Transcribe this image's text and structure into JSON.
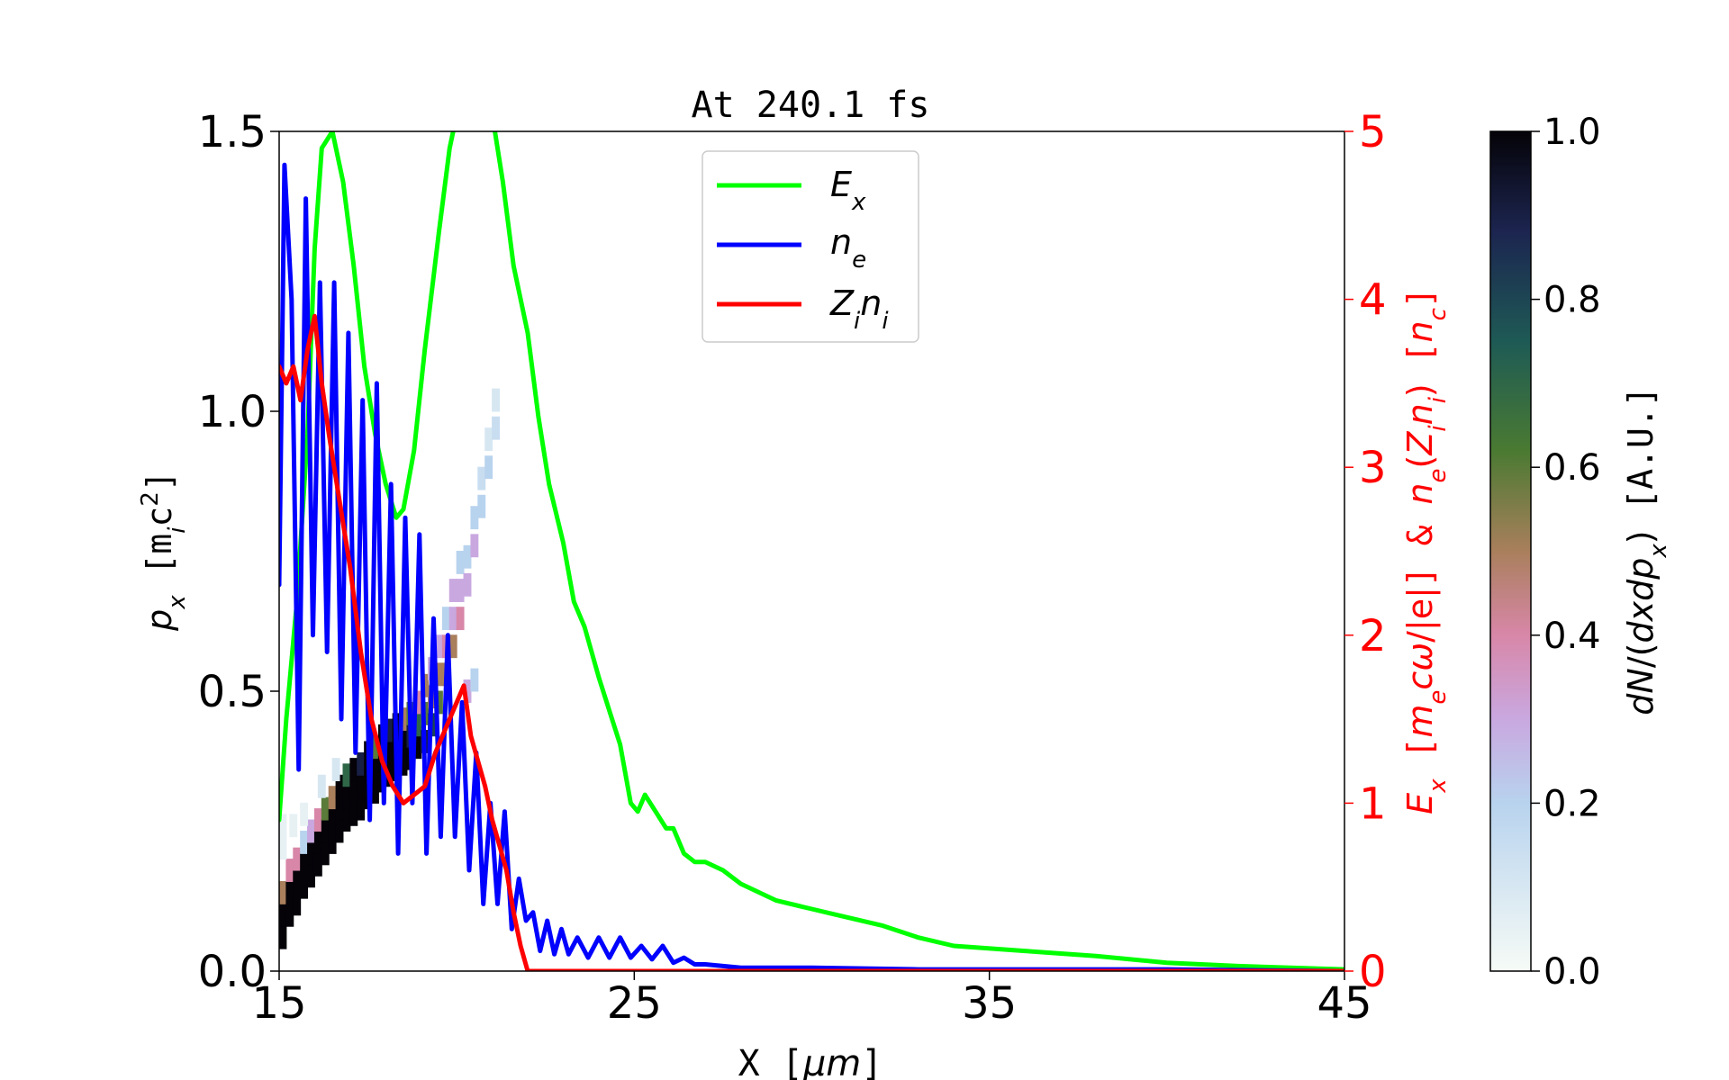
{
  "chart_data": {
    "type": "line",
    "title": "At 240.1 fs",
    "xlabel": "X [μm]",
    "ylabel_left": "p_x [m_i c^2]",
    "ylabel_right": "E_x [m_e cω/|e|] & n_e(Z_i n_i) [n_c]",
    "colorbar_label": "dN/(dx dp_x) [A.U.]",
    "xlim": [
      15,
      45
    ],
    "ylim_left": [
      0,
      1.5
    ],
    "ylim_right": [
      0,
      5
    ],
    "xticks": [
      "15",
      "25",
      "35",
      "45"
    ],
    "yticks_left": [
      "0.0",
      "0.5",
      "1.0",
      "1.5"
    ],
    "yticks_right": [
      "0",
      "1",
      "2",
      "3",
      "4",
      "5"
    ],
    "colorbar_ticks": [
      "0.0",
      "0.2",
      "0.4",
      "0.6",
      "0.8",
      "1.0"
    ],
    "colorbar_range": [
      0,
      1
    ],
    "legend": {
      "placement": "upper-center",
      "entries": [
        "E_x",
        "n_e",
        "Z_i n_i"
      ]
    },
    "colors": {
      "Ex": "#00ff00",
      "ne": "#0000ff",
      "Zn": "#ff0000",
      "right_axis": "#ff0000"
    },
    "series": [
      {
        "name": "E_x",
        "axis": "right",
        "x": [
          15.0,
          15.2,
          15.5,
          15.8,
          16.0,
          16.2,
          16.5,
          16.8,
          17.1,
          17.4,
          17.7,
          18.0,
          18.3,
          18.5,
          18.8,
          19.1,
          19.5,
          19.8,
          20.0,
          20.3,
          20.6,
          21.0,
          21.3,
          21.6,
          22.0,
          22.3,
          22.6,
          23.0,
          23.3,
          23.6,
          24.0,
          24.3,
          24.6,
          24.9,
          25.1,
          25.3,
          25.6,
          25.9,
          26.1,
          26.4,
          26.7,
          27.0,
          27.5,
          28.0,
          29.0,
          30.0,
          31.0,
          32.0,
          33.0,
          34.0,
          36.0,
          38.0,
          40.0,
          42.0,
          45.0
        ],
        "y": [
          0.9,
          1.5,
          2.2,
          3.2,
          4.3,
          4.9,
          5.0,
          4.7,
          4.2,
          3.6,
          3.2,
          2.9,
          2.7,
          2.75,
          3.1,
          3.7,
          4.4,
          4.9,
          5.1,
          5.5,
          5.6,
          5.1,
          4.7,
          4.2,
          3.8,
          3.3,
          2.9,
          2.55,
          2.2,
          2.05,
          1.75,
          1.55,
          1.35,
          1.0,
          0.95,
          1.05,
          0.95,
          0.85,
          0.85,
          0.7,
          0.65,
          0.65,
          0.6,
          0.52,
          0.42,
          0.37,
          0.32,
          0.27,
          0.2,
          0.15,
          0.12,
          0.09,
          0.05,
          0.03,
          0.01
        ]
      },
      {
        "name": "n_e",
        "axis": "right",
        "x": [
          15.0,
          15.15,
          15.35,
          15.55,
          15.75,
          15.95,
          16.15,
          16.35,
          16.55,
          16.75,
          16.95,
          17.15,
          17.35,
          17.55,
          17.75,
          17.95,
          18.15,
          18.35,
          18.55,
          18.75,
          18.95,
          19.15,
          19.35,
          19.55,
          19.75,
          19.95,
          20.15,
          20.35,
          20.55,
          20.75,
          20.95,
          21.15,
          21.35,
          21.55,
          21.75,
          21.95,
          22.15,
          22.35,
          22.55,
          22.75,
          22.95,
          23.15,
          23.4,
          23.7,
          24.0,
          24.3,
          24.6,
          24.9,
          25.2,
          25.5,
          25.8,
          26.1,
          26.4,
          26.7,
          27.0,
          27.5,
          28.0,
          30.0,
          33.0,
          36.0,
          40.0,
          45.0
        ],
        "y": [
          2.3,
          4.8,
          4.0,
          1.2,
          4.6,
          2.0,
          4.1,
          1.9,
          4.1,
          1.5,
          3.8,
          1.3,
          3.4,
          0.9,
          3.5,
          1.0,
          2.9,
          0.7,
          2.7,
          1.0,
          2.6,
          0.7,
          2.1,
          0.8,
          2.0,
          0.8,
          1.6,
          0.6,
          1.3,
          0.4,
          1.0,
          0.4,
          0.95,
          0.25,
          0.55,
          0.3,
          0.35,
          0.12,
          0.3,
          0.1,
          0.25,
          0.1,
          0.2,
          0.08,
          0.2,
          0.08,
          0.2,
          0.08,
          0.15,
          0.07,
          0.15,
          0.05,
          0.08,
          0.04,
          0.04,
          0.03,
          0.02,
          0.02,
          0.01,
          0.01,
          0.01,
          0.0
        ]
      },
      {
        "name": "Z_i n_i",
        "axis": "right",
        "x": [
          15.0,
          15.2,
          15.4,
          15.6,
          15.8,
          16.0,
          16.2,
          16.4,
          16.7,
          17.0,
          17.3,
          17.6,
          17.9,
          18.2,
          18.5,
          18.8,
          19.1,
          19.4,
          19.7,
          20.0,
          20.2,
          20.4,
          20.6,
          20.8,
          21.0,
          21.2,
          21.4,
          21.6,
          21.8,
          22.0,
          22.2,
          25.0,
          30.0,
          35.0,
          40.0,
          45.0
        ],
        "y": [
          3.6,
          3.5,
          3.6,
          3.4,
          3.7,
          3.9,
          3.5,
          3.2,
          2.8,
          2.4,
          1.9,
          1.5,
          1.25,
          1.1,
          1.0,
          1.05,
          1.1,
          1.3,
          1.45,
          1.6,
          1.7,
          1.4,
          1.25,
          1.1,
          0.9,
          0.75,
          0.6,
          0.35,
          0.15,
          0.0,
          0.0,
          0.0,
          0.0,
          0.0,
          0.0,
          0.0
        ]
      }
    ],
    "phase_space": {
      "name": "dN/(dx dp_x)",
      "axis": "left",
      "points": [
        {
          "x": 15.1,
          "p": 0.06,
          "v": 1.0
        },
        {
          "x": 15.1,
          "p": 0.1,
          "v": 1.0
        },
        {
          "x": 15.1,
          "p": 0.14,
          "v": 0.5
        },
        {
          "x": 15.3,
          "p": 0.1,
          "v": 1.0
        },
        {
          "x": 15.3,
          "p": 0.14,
          "v": 1.0
        },
        {
          "x": 15.3,
          "p": 0.18,
          "v": 0.4
        },
        {
          "x": 15.5,
          "p": 0.12,
          "v": 1.0
        },
        {
          "x": 15.5,
          "p": 0.16,
          "v": 1.0
        },
        {
          "x": 15.5,
          "p": 0.2,
          "v": 0.4
        },
        {
          "x": 15.7,
          "p": 0.15,
          "v": 1.0
        },
        {
          "x": 15.7,
          "p": 0.19,
          "v": 1.0
        },
        {
          "x": 15.7,
          "p": 0.23,
          "v": 0.2
        },
        {
          "x": 15.9,
          "p": 0.17,
          "v": 1.0
        },
        {
          "x": 15.9,
          "p": 0.21,
          "v": 1.0
        },
        {
          "x": 15.9,
          "p": 0.25,
          "v": 0.3
        },
        {
          "x": 16.1,
          "p": 0.19,
          "v": 1.0
        },
        {
          "x": 16.1,
          "p": 0.23,
          "v": 1.0
        },
        {
          "x": 16.1,
          "p": 0.27,
          "v": 0.4
        },
        {
          "x": 16.3,
          "p": 0.21,
          "v": 1.0
        },
        {
          "x": 16.3,
          "p": 0.25,
          "v": 1.0
        },
        {
          "x": 16.3,
          "p": 0.29,
          "v": 0.6
        },
        {
          "x": 16.5,
          "p": 0.23,
          "v": 1.0
        },
        {
          "x": 16.5,
          "p": 0.27,
          "v": 1.0
        },
        {
          "x": 16.5,
          "p": 0.31,
          "v": 0.5
        },
        {
          "x": 16.7,
          "p": 0.25,
          "v": 1.0
        },
        {
          "x": 16.7,
          "p": 0.29,
          "v": 1.0
        },
        {
          "x": 16.7,
          "p": 0.33,
          "v": 1.0
        },
        {
          "x": 16.9,
          "p": 0.27,
          "v": 1.0
        },
        {
          "x": 16.9,
          "p": 0.31,
          "v": 1.0
        },
        {
          "x": 16.9,
          "p": 0.35,
          "v": 0.7
        },
        {
          "x": 17.1,
          "p": 0.28,
          "v": 1.0
        },
        {
          "x": 17.1,
          "p": 0.32,
          "v": 1.0
        },
        {
          "x": 17.1,
          "p": 0.36,
          "v": 1.0
        },
        {
          "x": 17.3,
          "p": 0.29,
          "v": 1.0
        },
        {
          "x": 17.3,
          "p": 0.33,
          "v": 1.0
        },
        {
          "x": 17.3,
          "p": 0.37,
          "v": 0.9
        },
        {
          "x": 17.5,
          "p": 0.31,
          "v": 1.0
        },
        {
          "x": 17.5,
          "p": 0.35,
          "v": 1.0
        },
        {
          "x": 17.5,
          "p": 0.39,
          "v": 1.0
        },
        {
          "x": 17.7,
          "p": 0.32,
          "v": 1.0
        },
        {
          "x": 17.7,
          "p": 0.36,
          "v": 1.0
        },
        {
          "x": 17.7,
          "p": 0.4,
          "v": 0.6
        },
        {
          "x": 17.9,
          "p": 0.34,
          "v": 1.0
        },
        {
          "x": 17.9,
          "p": 0.38,
          "v": 1.0
        },
        {
          "x": 17.9,
          "p": 0.42,
          "v": 1.0
        },
        {
          "x": 18.1,
          "p": 0.35,
          "v": 1.0
        },
        {
          "x": 18.1,
          "p": 0.39,
          "v": 1.0
        },
        {
          "x": 18.1,
          "p": 0.43,
          "v": 0.9
        },
        {
          "x": 18.3,
          "p": 0.36,
          "v": 1.0
        },
        {
          "x": 18.3,
          "p": 0.4,
          "v": 1.0
        },
        {
          "x": 18.3,
          "p": 0.44,
          "v": 1.0
        },
        {
          "x": 18.5,
          "p": 0.37,
          "v": 1.0
        },
        {
          "x": 18.5,
          "p": 0.41,
          "v": 1.0
        },
        {
          "x": 18.5,
          "p": 0.45,
          "v": 0.5
        },
        {
          "x": 18.7,
          "p": 0.38,
          "v": 1.0
        },
        {
          "x": 18.7,
          "p": 0.42,
          "v": 0.9
        },
        {
          "x": 18.7,
          "p": 0.46,
          "v": 0.6
        },
        {
          "x": 18.9,
          "p": 0.4,
          "v": 1.0
        },
        {
          "x": 18.9,
          "p": 0.44,
          "v": 0.7
        },
        {
          "x": 18.9,
          "p": 0.48,
          "v": 0.4
        },
        {
          "x": 19.1,
          "p": 0.41,
          "v": 0.9
        },
        {
          "x": 19.1,
          "p": 0.46,
          "v": 0.6
        },
        {
          "x": 19.1,
          "p": 0.51,
          "v": 0.5
        },
        {
          "x": 19.3,
          "p": 0.44,
          "v": 0.8
        },
        {
          "x": 19.3,
          "p": 0.49,
          "v": 0.5
        },
        {
          "x": 19.3,
          "p": 0.54,
          "v": 0.3
        },
        {
          "x": 19.5,
          "p": 0.48,
          "v": 0.6
        },
        {
          "x": 19.5,
          "p": 0.53,
          "v": 0.5
        },
        {
          "x": 19.5,
          "p": 0.58,
          "v": 0.3
        },
        {
          "x": 19.7,
          "p": 0.53,
          "v": 0.5
        },
        {
          "x": 19.7,
          "p": 0.58,
          "v": 0.4
        },
        {
          "x": 19.7,
          "p": 0.63,
          "v": 0.2
        },
        {
          "x": 19.9,
          "p": 0.58,
          "v": 0.5
        },
        {
          "x": 19.9,
          "p": 0.63,
          "v": 0.3
        },
        {
          "x": 19.9,
          "p": 0.68,
          "v": 0.3
        },
        {
          "x": 20.1,
          "p": 0.63,
          "v": 0.4
        },
        {
          "x": 20.1,
          "p": 0.68,
          "v": 0.3
        },
        {
          "x": 20.1,
          "p": 0.73,
          "v": 0.2
        },
        {
          "x": 20.3,
          "p": 0.69,
          "v": 0.3
        },
        {
          "x": 20.3,
          "p": 0.74,
          "v": 0.2
        },
        {
          "x": 20.5,
          "p": 0.76,
          "v": 0.3
        },
        {
          "x": 20.5,
          "p": 0.81,
          "v": 0.2
        },
        {
          "x": 20.7,
          "p": 0.83,
          "v": 0.2
        },
        {
          "x": 20.7,
          "p": 0.88,
          "v": 0.15
        },
        {
          "x": 20.9,
          "p": 0.9,
          "v": 0.2
        },
        {
          "x": 20.9,
          "p": 0.95,
          "v": 0.1
        },
        {
          "x": 21.1,
          "p": 0.97,
          "v": 0.15
        },
        {
          "x": 21.1,
          "p": 1.02,
          "v": 0.1
        },
        {
          "x": 15.1,
          "p": 0.22,
          "v": 0.05
        },
        {
          "x": 15.1,
          "p": 0.26,
          "v": 0.05
        },
        {
          "x": 15.4,
          "p": 0.26,
          "v": 0.05
        },
        {
          "x": 15.7,
          "p": 0.28,
          "v": 0.05
        },
        {
          "x": 16.2,
          "p": 0.33,
          "v": 0.1
        },
        {
          "x": 16.6,
          "p": 0.36,
          "v": 0.1
        },
        {
          "x": 20.3,
          "p": 0.5,
          "v": 0.3
        },
        {
          "x": 20.5,
          "p": 0.52,
          "v": 0.2
        }
      ]
    }
  }
}
